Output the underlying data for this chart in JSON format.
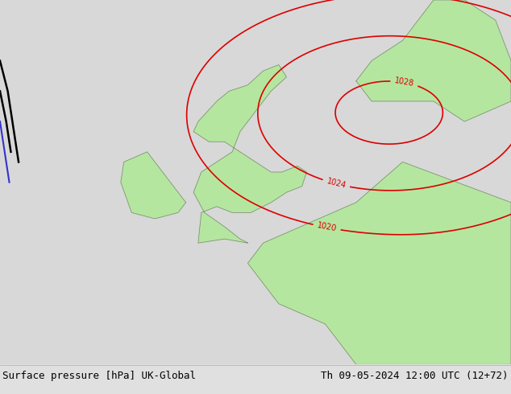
{
  "title_left": "Surface pressure [hPa] UK-Global",
  "title_right": "Th 09-05-2024 12:00 UTC (12+72)",
  "bg_color": "#e0e0e0",
  "land_color": "#b5e6a0",
  "sea_color": "#d8d8d8",
  "isobar_color": "#dd0000",
  "coast_color": "#808080",
  "title_fontsize": 9,
  "label_fontsize": 7,
  "lon_min": -18,
  "lon_max": 15,
  "lat_min": 44,
  "lat_max": 62,
  "isobar_levels": [
    1020,
    1024,
    1028
  ],
  "black_line_color": "#000000",
  "blue_line_color": "#3333cc"
}
